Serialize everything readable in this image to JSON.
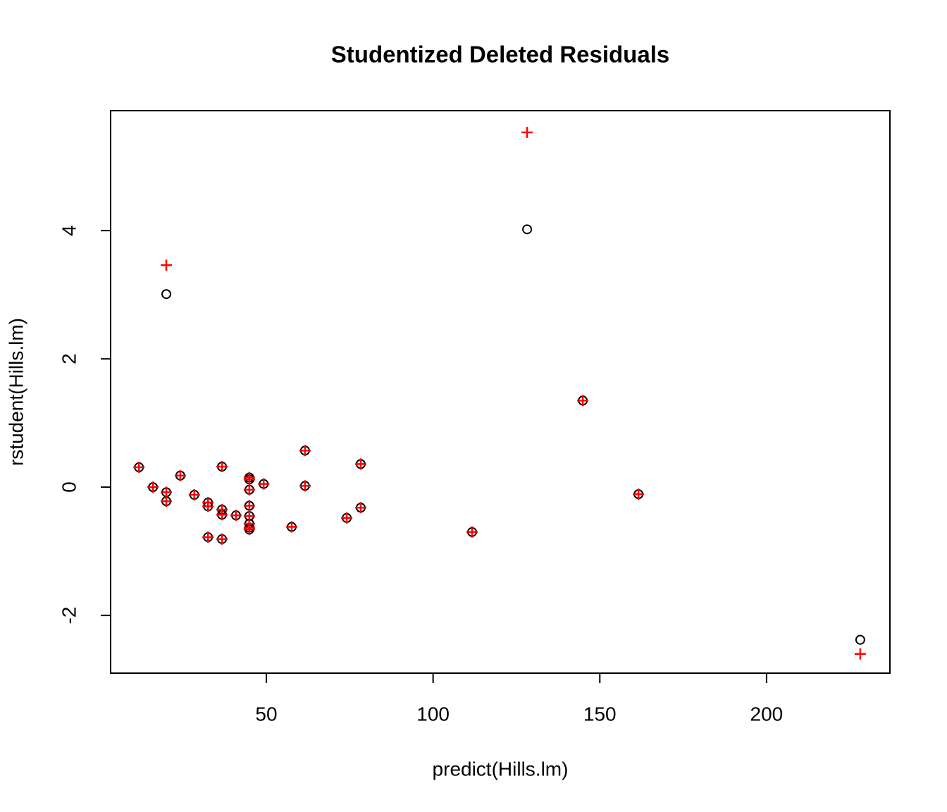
{
  "chart_data": {
    "type": "scatter",
    "title": "Studentized Deleted Residuals",
    "x_label": "predict(Hills.lm)",
    "y_label": "rstudent(Hills.lm)",
    "x": [
      11.8,
      16.0,
      20.0,
      20.0,
      20.0,
      24.2,
      28.4,
      32.5,
      32.5,
      32.5,
      36.7,
      36.7,
      36.7,
      36.7,
      40.9,
      44.9,
      44.9,
      44.9,
      44.9,
      44.9,
      44.9,
      44.9,
      44.9,
      49.2,
      57.6,
      61.6,
      61.6,
      74.1,
      78.3,
      78.3,
      111.7,
      128.2,
      144.9,
      161.6,
      228.1
    ],
    "series": [
      {
        "color": "#000000",
        "marker": "circle",
        "values": [
          0.31,
          0.0,
          -0.08,
          -0.22,
          3.01,
          0.18,
          -0.12,
          -0.24,
          -0.3,
          -0.78,
          0.32,
          -0.35,
          -0.43,
          -0.81,
          -0.44,
          0.15,
          0.12,
          -0.04,
          -0.29,
          -0.45,
          -0.57,
          -0.63,
          -0.66,
          0.05,
          -0.62,
          0.57,
          0.02,
          -0.48,
          0.36,
          -0.32,
          -0.7,
          4.02,
          1.35,
          -0.11,
          -2.38
        ]
      },
      {
        "color": "#ff0000",
        "marker": "plus",
        "values": [
          0.31,
          0.0,
          -0.08,
          -0.22,
          3.46,
          0.18,
          -0.12,
          -0.24,
          -0.3,
          -0.78,
          0.32,
          -0.35,
          -0.43,
          -0.81,
          -0.44,
          0.15,
          0.12,
          -0.04,
          -0.29,
          -0.45,
          -0.57,
          -0.63,
          -0.66,
          0.05,
          -0.62,
          0.57,
          0.02,
          -0.48,
          0.36,
          -0.32,
          -0.7,
          5.53,
          1.35,
          -0.11,
          -2.6
        ]
      }
    ],
    "xlim": [
      3.3,
      237.0
    ],
    "ylim": [
      -2.9,
      5.87
    ],
    "xticks": [
      50,
      100,
      150,
      200
    ],
    "yticks": [
      -2,
      0,
      2,
      4
    ]
  }
}
